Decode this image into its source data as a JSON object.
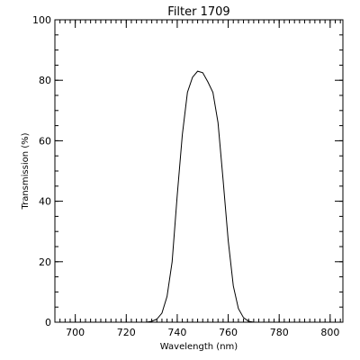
{
  "chart_data": {
    "type": "line",
    "title": "Filter 1709",
    "xlabel": "Wavelength (nm)",
    "ylabel": "Transmission (%)",
    "xlim": [
      692,
      805
    ],
    "ylim": [
      0,
      100
    ],
    "xticks": [
      700,
      720,
      740,
      760,
      780,
      800
    ],
    "yticks": [
      0,
      20,
      40,
      60,
      80,
      100
    ],
    "x_minor_step": 2,
    "y_minor_step": 5,
    "grid": false,
    "series": [
      {
        "color": "#000000",
        "x": [
          726,
          728,
          730,
          732,
          734,
          736,
          738,
          740,
          742,
          744,
          746,
          748,
          750,
          752,
          754,
          756,
          758,
          760,
          762,
          764,
          766,
          768,
          770,
          772,
          774
        ],
        "y": [
          0,
          0,
          0.3,
          1.0,
          3.0,
          8.5,
          20,
          42,
          62,
          76,
          81,
          83,
          82.5,
          79.5,
          76,
          66,
          47,
          27,
          12,
          4.5,
          1.5,
          0.3,
          0,
          0,
          0
        ]
      }
    ]
  }
}
